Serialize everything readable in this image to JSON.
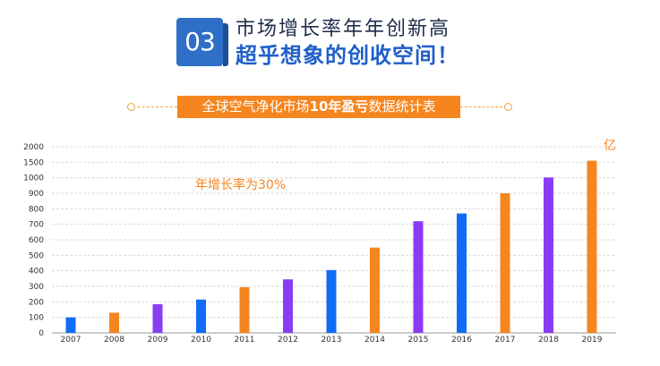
{
  "header": {
    "badge": "03",
    "line1": "市场增长率年年创新高",
    "line2": "超乎想象的创收空间！"
  },
  "banner": {
    "before": "全球空气净化市场",
    "bold": "10年盈亏",
    "after": "数据统计表"
  },
  "colors": {
    "blue": "#0f6df5",
    "orange": "#f5861f",
    "purple": "#8a3cf5"
  },
  "chart_data": {
    "type": "bar",
    "categories": [
      "2007",
      "2008",
      "2009",
      "2010",
      "2011",
      "2012",
      "2013",
      "2014",
      "2015",
      "2016",
      "2017",
      "2018",
      "2019"
    ],
    "values": [
      100,
      130,
      185,
      215,
      295,
      345,
      405,
      550,
      720,
      770,
      900,
      1010,
      1550
    ],
    "bar_colors": [
      "blue",
      "orange",
      "purple",
      "blue",
      "orange",
      "purple",
      "blue",
      "orange",
      "purple",
      "blue",
      "orange",
      "purple",
      "orange"
    ],
    "ylim": [
      0,
      2000
    ],
    "yticks": [
      0,
      100,
      200,
      300,
      400,
      500,
      600,
      700,
      800,
      900,
      1000,
      1500,
      2000
    ],
    "unit_label": "亿",
    "annotation": "年增长率为30%",
    "grid": true,
    "title": "",
    "xlabel": "",
    "ylabel": ""
  }
}
